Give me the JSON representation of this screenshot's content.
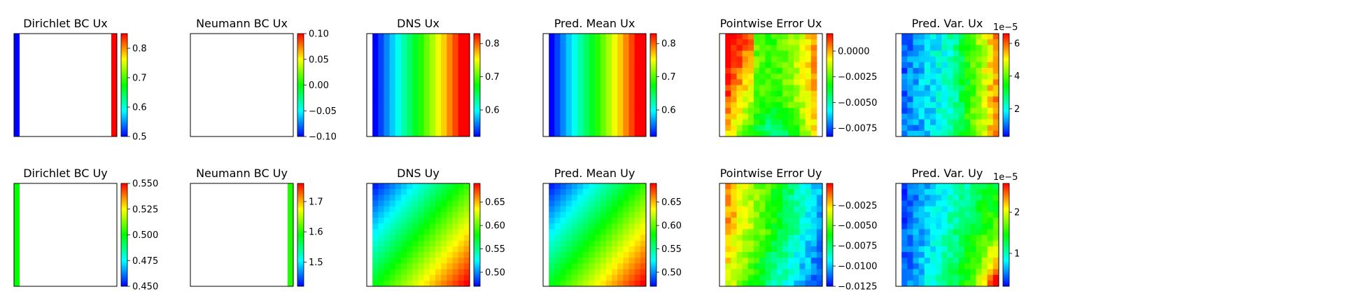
{
  "colormap": [
    "#0000ff",
    "#00ffff",
    "#00ff00",
    "#ffff00",
    "#ff0000"
  ],
  "chart_data": [
    {
      "type": "heatmap",
      "title": "Dirichlet BC Ux",
      "pattern": "edges",
      "left": 0.5,
      "right": 0.85,
      "top": null,
      "bottom": null,
      "vmin": 0.5,
      "vmax": 0.85,
      "ticks": [
        "0.5",
        "0.6",
        "0.7",
        "0.8"
      ],
      "tick_values": [
        0.5,
        0.6,
        0.7,
        0.8
      ],
      "exponent": ""
    },
    {
      "type": "heatmap",
      "title": "Neumann BC Ux",
      "pattern": "edges",
      "left": null,
      "right": null,
      "top": null,
      "bottom": null,
      "vmin": -0.1,
      "vmax": 0.1,
      "ticks": [
        "0.10",
        "0.05",
        "0.00",
        "−0.05",
        "−0.10"
      ],
      "tick_values": [
        0.1,
        0.05,
        0.0,
        -0.05,
        -0.1
      ],
      "exponent": ""
    },
    {
      "type": "heatmap",
      "title": "DNS Ux",
      "pattern": "xgrad",
      "vmin": 0.52,
      "vmax": 0.83,
      "ticks": [
        "0.8",
        "0.7",
        "0.6"
      ],
      "tick_values": [
        0.8,
        0.7,
        0.6
      ],
      "exponent": ""
    },
    {
      "type": "heatmap",
      "title": "Pred. Mean Ux",
      "pattern": "xgrad",
      "vmin": 0.52,
      "vmax": 0.83,
      "ticks": [
        "0.8",
        "0.7",
        "0.6"
      ],
      "tick_values": [
        0.8,
        0.7,
        0.6
      ],
      "exponent": ""
    },
    {
      "type": "heatmap",
      "title": "Pointwise Error Ux",
      "pattern": "err_ux",
      "vmin": -0.0083,
      "vmax": 0.0017,
      "ticks": [
        "0.0000",
        "−0.0025",
        "−0.0050",
        "−0.0075"
      ],
      "tick_values": [
        0.0,
        -0.0025,
        -0.005,
        -0.0075
      ],
      "exponent": ""
    },
    {
      "type": "heatmap",
      "title": "Pred. Var. Ux",
      "pattern": "var_ux",
      "vmin": 0.3,
      "vmax": 6.6,
      "ticks": [
        "6",
        "4",
        "2"
      ],
      "tick_values": [
        6,
        4,
        2
      ],
      "exponent": "1e−5"
    },
    {
      "type": "heatmap",
      "title": "Dirichlet BC Uy",
      "pattern": "edges",
      "left": 0.5,
      "right": null,
      "top": null,
      "bottom": null,
      "vmin": 0.45,
      "vmax": 0.55,
      "ticks": [
        "0.550",
        "0.525",
        "0.500",
        "0.475",
        "0.450"
      ],
      "tick_values": [
        0.55,
        0.525,
        0.5,
        0.475,
        0.45
      ],
      "exponent": ""
    },
    {
      "type": "heatmap",
      "title": "Neumann BC Uy",
      "pattern": "edges",
      "left": null,
      "right": 1.6,
      "top": null,
      "bottom": null,
      "vmin": 1.42,
      "vmax": 1.76,
      "ticks": [
        "1.7",
        "1.6",
        "1.5"
      ],
      "tick_values": [
        1.7,
        1.6,
        1.5
      ],
      "exponent": ""
    },
    {
      "type": "heatmap",
      "title": "DNS Uy",
      "pattern": "diag",
      "vmin": 0.47,
      "vmax": 0.69,
      "ticks": [
        "0.65",
        "0.60",
        "0.55",
        "0.50"
      ],
      "tick_values": [
        0.65,
        0.6,
        0.55,
        0.5
      ],
      "exponent": ""
    },
    {
      "type": "heatmap",
      "title": "Pred. Mean Uy",
      "pattern": "diag",
      "vmin": 0.47,
      "vmax": 0.69,
      "ticks": [
        "0.65",
        "0.60",
        "0.55",
        "0.50"
      ],
      "tick_values": [
        0.65,
        0.6,
        0.55,
        0.5
      ],
      "exponent": ""
    },
    {
      "type": "heatmap",
      "title": "Pointwise Error Uy",
      "pattern": "err_uy",
      "vmin": -0.0125,
      "vmax": 0.0002,
      "ticks": [
        "−0.0025",
        "−0.0050",
        "−0.0075",
        "−0.0100",
        "−0.0125"
      ],
      "tick_values": [
        -0.0025,
        -0.005,
        -0.0075,
        -0.01,
        -0.0125
      ],
      "exponent": ""
    },
    {
      "type": "heatmap",
      "title": "Pred. Var. Uy",
      "pattern": "var_uy",
      "vmin": 0.2,
      "vmax": 2.7,
      "ticks": [
        "2",
        "1"
      ],
      "tick_values": [
        2,
        1
      ],
      "exponent": "1e−5"
    }
  ]
}
